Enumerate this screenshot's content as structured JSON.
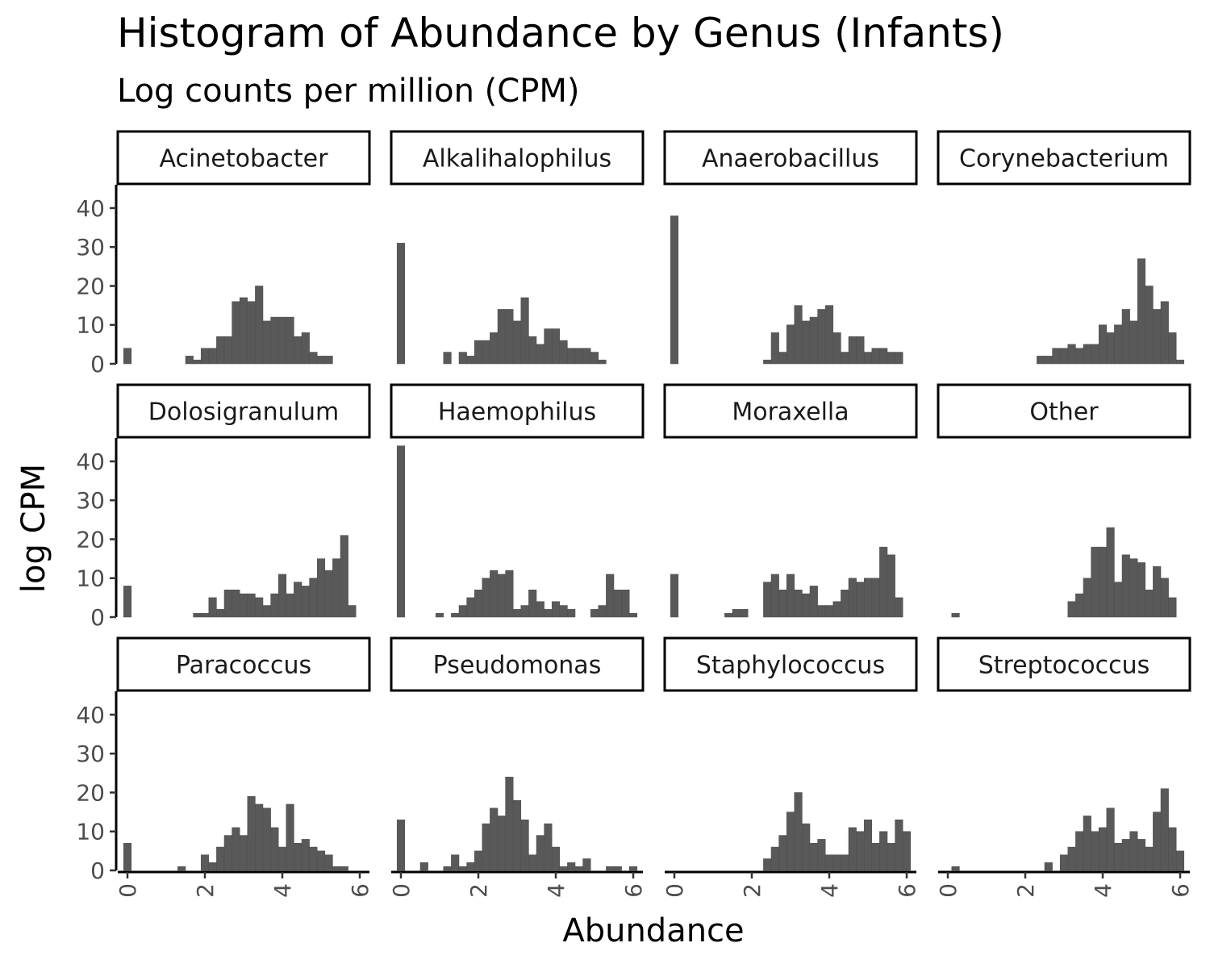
{
  "chart_data": {
    "type": "bar",
    "title": "Histogram of Abundance by Genus (Infants)",
    "subtitle": "Log counts per million (CPM)",
    "xlabel": "Abundance",
    "ylabel": "log CPM",
    "xlim": [
      -0.25,
      6.25
    ],
    "ylim": [
      0,
      46
    ],
    "x_ticks": [
      0,
      2,
      4,
      6
    ],
    "y_ticks": [
      0,
      10,
      20,
      30,
      40
    ],
    "bar_color": "#595959",
    "bin_width": 0.2,
    "bin_centers": [
      0,
      0.2,
      0.4,
      0.6,
      0.8,
      1.0,
      1.2,
      1.4,
      1.6,
      1.8,
      2.0,
      2.2,
      2.4,
      2.6,
      2.8,
      3.0,
      3.2,
      3.4,
      3.6,
      3.8,
      4.0,
      4.2,
      4.4,
      4.6,
      4.8,
      5.0,
      5.2,
      5.4,
      5.6,
      5.8,
      6.0
    ],
    "panels": [
      {
        "name": "Acinetobacter",
        "counts": [
          4,
          0,
          0,
          0,
          0,
          0,
          0,
          0,
          2,
          1,
          4,
          4,
          7,
          7,
          16,
          17,
          16,
          20,
          11,
          12,
          12,
          12,
          7,
          8,
          3,
          2,
          2,
          0,
          0,
          0,
          0
        ]
      },
      {
        "name": "Alkalihalophilus",
        "counts": [
          31,
          0,
          0,
          0,
          0,
          0,
          3,
          0,
          3,
          2,
          6,
          6,
          8,
          14,
          14,
          11,
          17,
          7,
          5,
          9,
          9,
          6,
          4,
          4,
          4,
          3,
          1,
          0,
          0,
          0,
          0
        ]
      },
      {
        "name": "Anaerobacillus",
        "counts": [
          38,
          0,
          0,
          0,
          0,
          0,
          0,
          0,
          0,
          0,
          0,
          0,
          1,
          8,
          3,
          10,
          15,
          11,
          12,
          14,
          15,
          8,
          3,
          7,
          7,
          3,
          4,
          4,
          3,
          3,
          0
        ]
      },
      {
        "name": "Corynebacterium",
        "counts": [
          0,
          0,
          0,
          0,
          0,
          0,
          0,
          0,
          0,
          0,
          0,
          0,
          2,
          2,
          4,
          4,
          5,
          4,
          5,
          5,
          10,
          8,
          10,
          14,
          11,
          27,
          20,
          14,
          16,
          8,
          1
        ]
      },
      {
        "name": "Dolosigranulum",
        "counts": [
          8,
          0,
          0,
          0,
          0,
          0,
          0,
          0,
          0,
          1,
          1,
          5,
          2,
          7,
          7,
          6,
          6,
          5,
          3,
          6,
          11,
          6,
          9,
          8,
          10,
          15,
          12,
          15,
          21,
          3,
          0
        ]
      },
      {
        "name": "Haemophilus",
        "counts": [
          44,
          0,
          0,
          0,
          0,
          1,
          0,
          1,
          3,
          5,
          7,
          10,
          12,
          11,
          12,
          2,
          3,
          7,
          4,
          2,
          4,
          3,
          2,
          0,
          0,
          2,
          3,
          11,
          7,
          7,
          1
        ]
      },
      {
        "name": "Moraxella",
        "counts": [
          11,
          0,
          0,
          0,
          0,
          0,
          0,
          1,
          2,
          2,
          0,
          0,
          9,
          11,
          7,
          11,
          7,
          6,
          8,
          3,
          3,
          4,
          7,
          10,
          9,
          10,
          10,
          18,
          16,
          5,
          0
        ]
      },
      {
        "name": "Other",
        "counts": [
          0,
          1,
          0,
          0,
          0,
          0,
          0,
          0,
          0,
          0,
          0,
          0,
          0,
          0,
          0,
          0,
          4,
          6,
          10,
          18,
          18,
          23,
          9,
          16,
          15,
          14,
          7,
          13,
          10,
          5,
          0
        ]
      },
      {
        "name": "Paracoccus",
        "counts": [
          7,
          0,
          0,
          0,
          0,
          0,
          0,
          1,
          0,
          0,
          4,
          2,
          6,
          9,
          11,
          9,
          19,
          17,
          16,
          11,
          6,
          17,
          7,
          8,
          6,
          5,
          4,
          1,
          1,
          0,
          0
        ]
      },
      {
        "name": "Pseudomonas",
        "counts": [
          13,
          0,
          0,
          2,
          0,
          0,
          1,
          4,
          1,
          2,
          5,
          12,
          16,
          14,
          24,
          18,
          13,
          4,
          9,
          12,
          6,
          1,
          2,
          1,
          3,
          0,
          0,
          1,
          1,
          0,
          1
        ]
      },
      {
        "name": "Staphylococcus",
        "counts": [
          0,
          0,
          0,
          0,
          0,
          0,
          0,
          0,
          0,
          0,
          0,
          0,
          3,
          6,
          9,
          15,
          20,
          12,
          7,
          8,
          4,
          4,
          4,
          11,
          10,
          13,
          7,
          10,
          7,
          13,
          10
        ]
      },
      {
        "name": "Streptococcus",
        "counts": [
          0,
          1,
          0,
          0,
          0,
          0,
          0,
          0,
          0,
          0,
          0,
          0,
          0,
          2,
          0,
          4,
          6,
          10,
          14,
          10,
          11,
          16,
          7,
          8,
          10,
          8,
          6,
          15,
          21,
          11,
          5
        ]
      }
    ]
  }
}
